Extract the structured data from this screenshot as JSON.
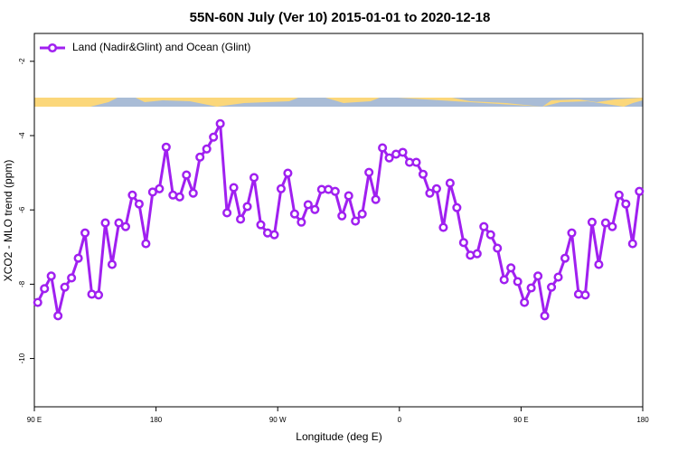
{
  "chart_data": {
    "type": "line",
    "title": "55N-60N July (Ver 10)   2015-01-01 to 2020-12-18",
    "xlabel": "Longitude (deg E)",
    "ylabel": "XCO2 - MLO trend (ppm)",
    "x": [
      92.5,
      97.5,
      102.5,
      107.5,
      112.5,
      117.5,
      122.5,
      127.5,
      132.5,
      137.5,
      142.5,
      147.5,
      152.5,
      157.5,
      162.5,
      167.5,
      172.5,
      177.5,
      182.5,
      187.5,
      192.5,
      197.5,
      202.5,
      207.5,
      212.5,
      217.5,
      222.5,
      227.5,
      232.5,
      237.5,
      242.5,
      247.5,
      252.5,
      257.5,
      262.5,
      267.5,
      272.5,
      277.5,
      282.5,
      287.5,
      292.5,
      297.5,
      302.5,
      307.5,
      312.5,
      317.5,
      322.5,
      327.5,
      332.5,
      337.5,
      342.5,
      347.5,
      352.5,
      357.5,
      362.5,
      367.5,
      372.5,
      377.5,
      382.5,
      387.5,
      392.5,
      397.5,
      402.5,
      407.5,
      412.5,
      417.5,
      422.5,
      427.5,
      432.5,
      437.5,
      442.5,
      447.5,
      452.5,
      457.5,
      462.5,
      467.5,
      472.5,
      477.5,
      482.5,
      487.5,
      492.5,
      497.5,
      502.5,
      507.5,
      512.5,
      517.5,
      522.5,
      527.5,
      532.5,
      537.5
    ],
    "series": [
      {
        "name": "Land (Nadir&Glint) and Ocean (Glint)",
        "color": "#a020f0",
        "values": [
          -8.49,
          -8.12,
          -7.78,
          -8.85,
          -8.08,
          -7.83,
          -7.3,
          -6.62,
          -8.27,
          -8.29,
          -6.35,
          -7.47,
          -6.35,
          -6.45,
          -5.6,
          -5.84,
          -6.91,
          -5.52,
          -5.43,
          -4.31,
          -5.6,
          -5.65,
          -5.06,
          -5.55,
          -4.58,
          -4.36,
          -4.04,
          -3.68,
          -6.08,
          -5.4,
          -6.25,
          -5.91,
          -5.13,
          -6.4,
          -6.62,
          -6.67,
          -5.43,
          -5.01,
          -6.11,
          -6.33,
          -5.86,
          -5.99,
          -5.45,
          -5.45,
          -5.5,
          -6.16,
          -5.62,
          -6.3,
          -6.11,
          -4.99,
          -5.72,
          -4.33,
          -4.6,
          -4.5,
          -4.45,
          -4.72,
          -4.72,
          -5.04,
          -5.55,
          -5.43,
          -6.47,
          -5.28,
          -5.94,
          -6.88,
          -7.22,
          -7.18,
          -6.45,
          -6.67,
          -7.03,
          -7.88,
          -7.56,
          -7.93,
          -8.49,
          -8.1,
          -7.78,
          -8.85,
          -8.08,
          -7.81,
          -7.3,
          -6.62,
          -8.27,
          -8.29,
          -6.33,
          -7.47,
          -6.35,
          -6.45,
          -5.6,
          -5.84,
          -6.91,
          -5.5
        ]
      }
    ],
    "xlim": [
      90,
      540
    ],
    "xticks": [
      {
        "value": 90,
        "label": "90 E"
      },
      180,
      {
        "value": 270,
        "label": "90 W"
      },
      {
        "value": 360,
        "label": "0"
      },
      {
        "value": 450,
        "label": "90 E"
      },
      {
        "value": 540,
        "label": "180"
      }
    ],
    "ylim": [
      -11.3,
      -1.25
    ],
    "yticks": [
      -2,
      -4,
      -6,
      -8,
      -10
    ],
    "legend": "top-left"
  }
}
